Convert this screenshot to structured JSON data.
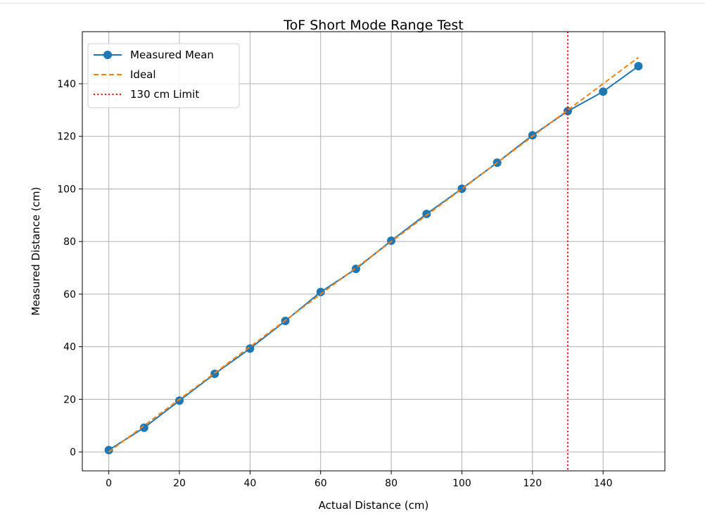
{
  "chart_data": {
    "type": "line",
    "title": "ToF Short Mode Range Test",
    "xlabel": "Actual Distance (cm)",
    "ylabel": "Measured Distance (cm)",
    "xlim": [
      -7.5,
      157.5
    ],
    "ylim": [
      -7.2,
      159.8
    ],
    "xticks": [
      0,
      20,
      40,
      60,
      80,
      100,
      120,
      140
    ],
    "yticks": [
      0,
      20,
      40,
      60,
      80,
      100,
      120,
      140
    ],
    "grid": true,
    "legend_position": "top-left",
    "x": [
      0,
      10,
      20,
      30,
      40,
      50,
      60,
      70,
      80,
      90,
      100,
      110,
      120,
      130,
      140,
      150
    ],
    "series": [
      {
        "name": "Measured Mean",
        "style": "solid-marker",
        "color": "#1f77b4",
        "values": [
          0.7,
          9.2,
          19.5,
          29.7,
          39.3,
          49.8,
          60.8,
          69.6,
          80.3,
          90.5,
          100.1,
          110.0,
          120.4,
          129.6,
          137.0,
          146.7
        ]
      },
      {
        "name": "Ideal",
        "style": "dashed",
        "color": "#ff7f0e",
        "values": [
          0,
          10,
          20,
          30,
          40,
          50,
          60,
          70,
          80,
          90,
          100,
          110,
          120,
          130,
          140,
          150
        ]
      }
    ],
    "vlines": [
      {
        "name": "130 cm Limit",
        "x": 130,
        "style": "dotted",
        "color": "#ff0000"
      }
    ]
  }
}
